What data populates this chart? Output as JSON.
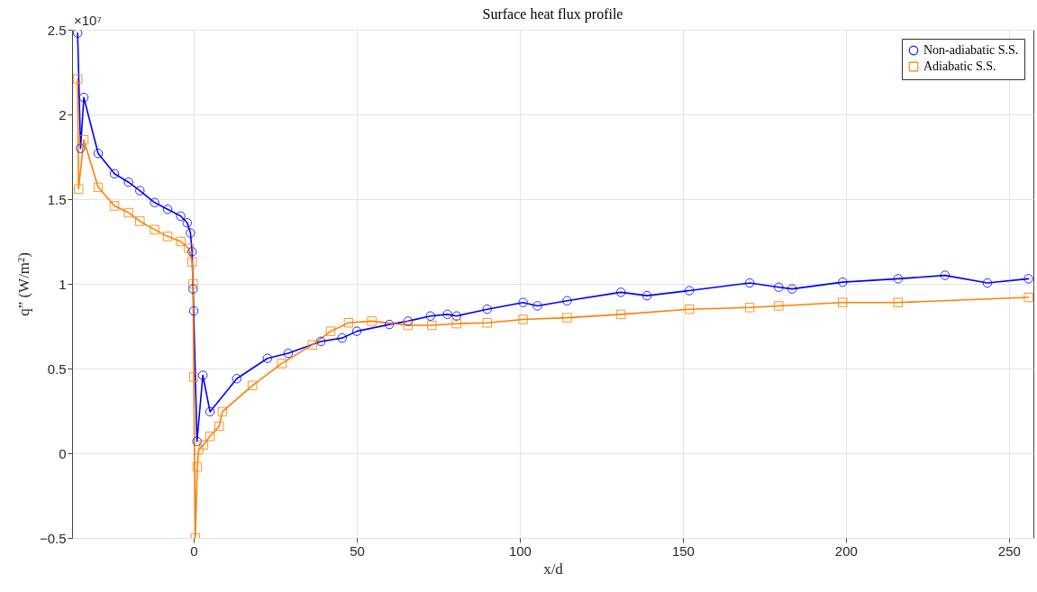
{
  "chart_data": {
    "type": "line",
    "title": "Surface heat flux profile",
    "xlabel": "x/d",
    "ylabel": "q” (W/m²)",
    "annotations": [
      "×10⁷"
    ],
    "xlim": [
      -37.3,
      257.5
    ],
    "xticks": [
      0,
      50,
      100,
      150,
      200,
      250
    ],
    "ylim": [
      -0.5,
      2.5
    ],
    "yticks": [
      -0.5,
      0,
      0.5,
      1,
      1.5,
      2,
      2.5
    ],
    "grid": true,
    "legend": "top right",
    "line_style": "solid",
    "series": [
      {
        "name": "Non-adiabatic S.S.",
        "color": "#0000ff",
        "marker": "circle",
        "x": [
          -35.6,
          -34.7,
          -33.7,
          -29.3,
          -24.3,
          -20,
          -16.5,
          -12,
          -8,
          -4,
          -2,
          -1,
          -0.5,
          -0.2,
          0,
          1,
          2.8,
          5,
          13.2,
          22.6,
          29,
          39,
          45.5,
          50,
          60,
          65.7,
          72.6,
          77.8,
          80.6,
          90,
          101,
          105.4,
          114.5,
          131,
          139,
          152,
          170.5,
          179.4,
          183.5,
          199,
          216,
          230.4,
          243.4,
          256
        ],
        "values": [
          2.48,
          1.8,
          2.1,
          1.77,
          1.65,
          1.6,
          1.55,
          1.48,
          1.44,
          1.4,
          1.36,
          1.3,
          1.19,
          0.97,
          0.84,
          0.07,
          0.46,
          0.245,
          0.44,
          0.56,
          0.59,
          0.66,
          0.68,
          0.72,
          0.76,
          0.78,
          0.81,
          0.82,
          0.81,
          0.85,
          0.89,
          0.87,
          0.9,
          0.95,
          0.93,
          0.96,
          1.005,
          0.98,
          0.97,
          1.01,
          1.03,
          1.05,
          1.005,
          1.03
        ]
      },
      {
        "name": "Adiabatic S.S.",
        "color": "#ff8000",
        "marker": "square",
        "x": [
          -35.6,
          -35.3,
          -33.7,
          -29.3,
          -24.3,
          -20,
          -16.5,
          -12,
          -8,
          -4,
          -1.5,
          -0.5,
          -0.2,
          0,
          0.5,
          1.1,
          1.5,
          3,
          5,
          7.8,
          8.8,
          18,
          27,
          36.4,
          42,
          47.5,
          54.6,
          65.7,
          73,
          80.6,
          90,
          101,
          114.5,
          131,
          152,
          170.5,
          179.4,
          199,
          216,
          256
        ],
        "values": [
          2.21,
          1.56,
          1.85,
          1.57,
          1.46,
          1.42,
          1.37,
          1.32,
          1.28,
          1.25,
          1.21,
          1.13,
          1.0,
          0.45,
          -0.5,
          -0.08,
          0.02,
          0.05,
          0.1,
          0.16,
          0.245,
          0.4,
          0.53,
          0.64,
          0.72,
          0.77,
          0.78,
          0.755,
          0.755,
          0.765,
          0.77,
          0.79,
          0.8,
          0.82,
          0.85,
          0.86,
          0.87,
          0.89,
          0.89,
          0.92
        ]
      }
    ]
  }
}
